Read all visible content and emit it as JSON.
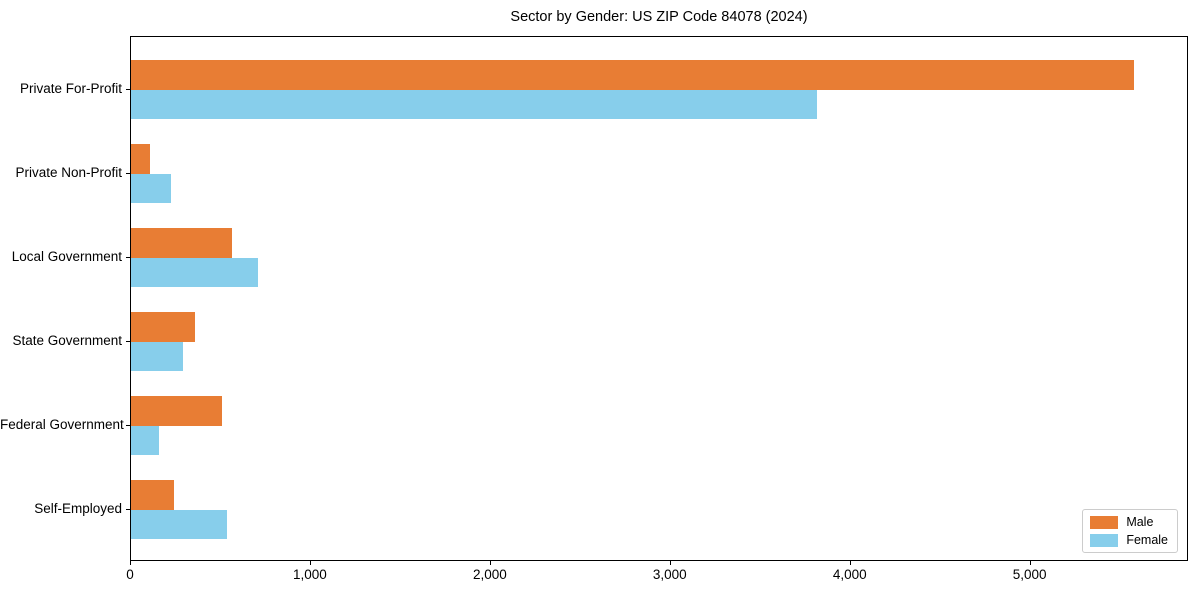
{
  "title": "Sector by Gender: US ZIP Code 84078 (2024)",
  "chart_data": {
    "type": "bar",
    "orientation": "horizontal",
    "title": "Sector by Gender: US ZIP Code 84078 (2024)",
    "xlabel": "",
    "ylabel": "",
    "categories": [
      "Private For-Profit",
      "Private Non-Profit",
      "Local Government",
      "State Government",
      "Federal Government",
      "Self-Employed"
    ],
    "series": [
      {
        "name": "Male",
        "color": "#E87D34",
        "values": [
          5585,
          105,
          565,
          355,
          505,
          240
        ]
      },
      {
        "name": "Female",
        "color": "#87CEEB",
        "values": [
          3820,
          220,
          705,
          290,
          155,
          535
        ]
      }
    ],
    "xlim": [
      0,
      5880
    ],
    "x_ticks": [
      0,
      1000,
      2000,
      3000,
      4000,
      5000
    ],
    "x_tick_labels": [
      "0",
      "1,000",
      "2,000",
      "3,000",
      "4,000",
      "5,000"
    ],
    "grid": false,
    "legend_position": "lower right",
    "background_color": "#ffffff",
    "spine_color": "#000000"
  },
  "legend": {
    "items": [
      {
        "label": "Male",
        "color": "#E87D34"
      },
      {
        "label": "Female",
        "color": "#87CEEB"
      }
    ]
  }
}
